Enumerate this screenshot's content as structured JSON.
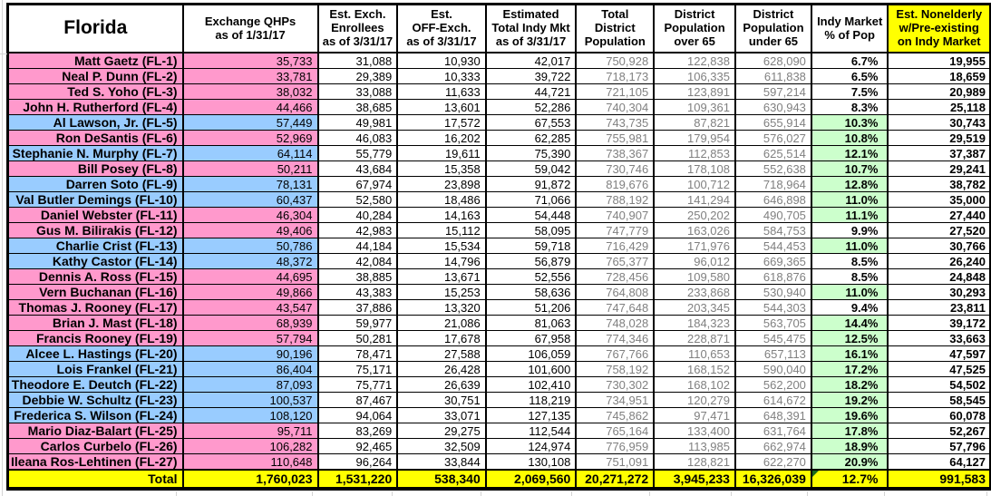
{
  "title": "Florida",
  "colors": {
    "republican_pink": "#FF99CC",
    "democrat_blue": "#99CCFF",
    "highlight_green": "#CCFFCC",
    "total_yellow": "#FFFF00",
    "population_text_gray": "#808080",
    "comment_marker_green": "#1d6b1d"
  },
  "columns": [
    {
      "key": "qhp",
      "label": "Exchange QHPs\nas of 1/31/17"
    },
    {
      "key": "enrollees",
      "label": "Est. Exch.\nEnrollees\nas of 3/31/17"
    },
    {
      "key": "off_exch",
      "label": "Est.\nOFF-Exch.\nas of 3/31/17"
    },
    {
      "key": "total_indy",
      "label": "Estimated\nTotal Indy Mkt\nas of 3/31/17"
    },
    {
      "key": "total_pop",
      "label": "Total\nDistrict\nPopulation"
    },
    {
      "key": "pop_over_65",
      "label": "District\nPopulation\nover 65"
    },
    {
      "key": "pop_under_65",
      "label": "District\nPopulation\nunder 65"
    },
    {
      "key": "indy_pct",
      "label": "Indy Market\n% of Pop"
    },
    {
      "key": "nonelderly",
      "label": "Est. Nonelderly\nw/Pre-existing\non Indy Market",
      "highlight": true
    }
  ],
  "rows": [
    {
      "member": "Matt Gaetz (FL-1)",
      "party_color": "pink",
      "values": [
        "35,733",
        "31,088",
        "10,930",
        "42,017",
        "750,928",
        "122,838",
        "628,090"
      ],
      "indy_pct": "6.7%",
      "pct_highlight": false,
      "nonelderly": "19,955"
    },
    {
      "member": "Neal P. Dunn (FL-2)",
      "party_color": "pink",
      "values": [
        "33,781",
        "29,389",
        "10,333",
        "39,722",
        "718,173",
        "106,335",
        "611,838"
      ],
      "indy_pct": "6.5%",
      "pct_highlight": false,
      "nonelderly": "18,659"
    },
    {
      "member": "Ted S. Yoho (FL-3)",
      "party_color": "pink",
      "values": [
        "38,032",
        "33,088",
        "11,633",
        "44,721",
        "721,105",
        "123,891",
        "597,214"
      ],
      "indy_pct": "7.5%",
      "pct_highlight": false,
      "nonelderly": "20,989"
    },
    {
      "member": "John H. Rutherford (FL-4)",
      "party_color": "pink",
      "values": [
        "44,466",
        "38,685",
        "13,601",
        "52,286",
        "740,304",
        "109,361",
        "630,943"
      ],
      "indy_pct": "8.3%",
      "pct_highlight": false,
      "nonelderly": "25,118"
    },
    {
      "member": "Al Lawson, Jr. (FL-5)",
      "party_color": "blue",
      "values": [
        "57,449",
        "49,981",
        "17,572",
        "67,553",
        "743,735",
        "87,821",
        "655,914"
      ],
      "indy_pct": "10.3%",
      "pct_highlight": true,
      "nonelderly": "30,743"
    },
    {
      "member": "Ron DeSantis (FL-6)",
      "party_color": "pink",
      "values": [
        "52,969",
        "46,083",
        "16,202",
        "62,285",
        "755,981",
        "179,954",
        "576,027"
      ],
      "indy_pct": "10.8%",
      "pct_highlight": true,
      "nonelderly": "29,519"
    },
    {
      "member": "Stephanie N. Murphy (FL-7)",
      "party_color": "blue",
      "values": [
        "64,114",
        "55,779",
        "19,611",
        "75,390",
        "738,367",
        "112,853",
        "625,514"
      ],
      "indy_pct": "12.1%",
      "pct_highlight": true,
      "nonelderly": "37,387"
    },
    {
      "member": "Bill Posey (FL-8)",
      "party_color": "pink",
      "values": [
        "50,211",
        "43,684",
        "15,358",
        "59,042",
        "730,746",
        "178,108",
        "552,638"
      ],
      "indy_pct": "10.7%",
      "pct_highlight": true,
      "nonelderly": "29,241"
    },
    {
      "member": "Darren Soto (FL-9)",
      "party_color": "blue",
      "values": [
        "78,131",
        "67,974",
        "23,898",
        "91,872",
        "819,676",
        "100,712",
        "718,964"
      ],
      "indy_pct": "12.8%",
      "pct_highlight": true,
      "nonelderly": "38,782"
    },
    {
      "member": "Val Butler Demings (FL-10)",
      "party_color": "blue",
      "values": [
        "60,437",
        "52,580",
        "18,486",
        "71,066",
        "788,192",
        "141,294",
        "646,898"
      ],
      "indy_pct": "11.0%",
      "pct_highlight": true,
      "nonelderly": "35,000"
    },
    {
      "member": "Daniel Webster (FL-11)",
      "party_color": "pink",
      "values": [
        "46,304",
        "40,284",
        "14,163",
        "54,448",
        "740,907",
        "250,202",
        "490,705"
      ],
      "indy_pct": "11.1%",
      "pct_highlight": true,
      "nonelderly": "27,440"
    },
    {
      "member": "Gus M. Bilirakis (FL-12)",
      "party_color": "pink",
      "values": [
        "49,406",
        "42,983",
        "15,112",
        "58,095",
        "747,779",
        "163,026",
        "584,753"
      ],
      "indy_pct": "9.9%",
      "pct_highlight": false,
      "nonelderly": "27,520"
    },
    {
      "member": "Charlie Crist (FL-13)",
      "party_color": "blue",
      "values": [
        "50,786",
        "44,184",
        "15,534",
        "59,718",
        "716,429",
        "171,976",
        "544,453"
      ],
      "indy_pct": "11.0%",
      "pct_highlight": true,
      "nonelderly": "30,766"
    },
    {
      "member": "Kathy Castor (FL-14)",
      "party_color": "blue",
      "values": [
        "48,372",
        "42,084",
        "14,796",
        "56,879",
        "765,377",
        "96,012",
        "669,365"
      ],
      "indy_pct": "8.5%",
      "pct_highlight": false,
      "nonelderly": "26,240"
    },
    {
      "member": "Dennis A. Ross (FL-15)",
      "party_color": "pink",
      "values": [
        "44,695",
        "38,885",
        "13,671",
        "52,556",
        "728,456",
        "109,580",
        "618,876"
      ],
      "indy_pct": "8.5%",
      "pct_highlight": false,
      "nonelderly": "24,848"
    },
    {
      "member": "Vern Buchanan (FL-16)",
      "party_color": "pink",
      "values": [
        "49,866",
        "43,383",
        "15,253",
        "58,636",
        "764,808",
        "233,868",
        "530,940"
      ],
      "indy_pct": "11.0%",
      "pct_highlight": true,
      "nonelderly": "30,293"
    },
    {
      "member": "Thomas J. Rooney (FL-17)",
      "party_color": "pink",
      "values": [
        "43,547",
        "37,886",
        "13,320",
        "51,206",
        "747,648",
        "203,345",
        "544,303"
      ],
      "indy_pct": "9.4%",
      "pct_highlight": false,
      "nonelderly": "23,811"
    },
    {
      "member": "Brian J. Mast (FL-18)",
      "party_color": "pink",
      "values": [
        "68,939",
        "59,977",
        "21,086",
        "81,063",
        "748,028",
        "184,323",
        "563,705"
      ],
      "indy_pct": "14.4%",
      "pct_highlight": true,
      "nonelderly": "39,172"
    },
    {
      "member": "Francis Rooney (FL-19)",
      "party_color": "pink",
      "values": [
        "57,794",
        "50,281",
        "17,678",
        "67,958",
        "774,346",
        "228,871",
        "545,475"
      ],
      "indy_pct": "12.5%",
      "pct_highlight": true,
      "nonelderly": "33,663"
    },
    {
      "member": "Alcee L. Hastings (FL-20)",
      "party_color": "blue",
      "values": [
        "90,196",
        "78,471",
        "27,588",
        "106,059",
        "767,766",
        "110,653",
        "657,113"
      ],
      "indy_pct": "16.1%",
      "pct_highlight": true,
      "nonelderly": "47,597"
    },
    {
      "member": "Lois Frankel (FL-21)",
      "party_color": "blue",
      "values": [
        "86,404",
        "75,171",
        "26,428",
        "101,600",
        "758,192",
        "168,152",
        "590,040"
      ],
      "indy_pct": "17.2%",
      "pct_highlight": true,
      "nonelderly": "47,525"
    },
    {
      "member": "Theodore E. Deutch (FL-22)",
      "party_color": "blue",
      "values": [
        "87,093",
        "75,771",
        "26,639",
        "102,410",
        "730,302",
        "168,102",
        "562,200"
      ],
      "indy_pct": "18.2%",
      "pct_highlight": true,
      "nonelderly": "54,502"
    },
    {
      "member": "Debbie W. Schultz (FL-23)",
      "party_color": "blue",
      "values": [
        "100,537",
        "87,467",
        "30,751",
        "118,219",
        "734,951",
        "120,279",
        "614,672"
      ],
      "indy_pct": "19.2%",
      "pct_highlight": true,
      "nonelderly": "58,545"
    },
    {
      "member": "Frederica S. Wilson (FL-24)",
      "party_color": "blue",
      "values": [
        "108,120",
        "94,064",
        "33,071",
        "127,135",
        "745,862",
        "97,471",
        "648,391"
      ],
      "indy_pct": "19.6%",
      "pct_highlight": true,
      "nonelderly": "60,078"
    },
    {
      "member": "Mario Diaz-Balart (FL-25)",
      "party_color": "pink",
      "values": [
        "95,711",
        "83,269",
        "29,275",
        "112,544",
        "765,164",
        "133,400",
        "631,764"
      ],
      "indy_pct": "17.8%",
      "pct_highlight": true,
      "nonelderly": "52,267"
    },
    {
      "member": "Carlos Curbelo (FL-26)",
      "party_color": "pink",
      "values": [
        "106,282",
        "92,465",
        "32,509",
        "124,974",
        "776,959",
        "113,985",
        "662,974"
      ],
      "indy_pct": "18.9%",
      "pct_highlight": true,
      "nonelderly": "57,796"
    },
    {
      "member": "Ileana Ros-Lehtinen (FL-27)",
      "party_color": "pink",
      "values": [
        "110,648",
        "96,264",
        "33,844",
        "130,108",
        "751,091",
        "128,821",
        "622,270"
      ],
      "indy_pct": "20.9%",
      "pct_highlight": true,
      "nonelderly": "64,127"
    }
  ],
  "total_row": {
    "label": "Total",
    "values": [
      "1,760,023",
      "1,531,220",
      "538,340",
      "2,069,560",
      "20,271,272",
      "3,945,233",
      "16,326,039"
    ],
    "indy_pct": "12.7%",
    "has_comment_marker": true,
    "nonelderly": "991,583"
  }
}
